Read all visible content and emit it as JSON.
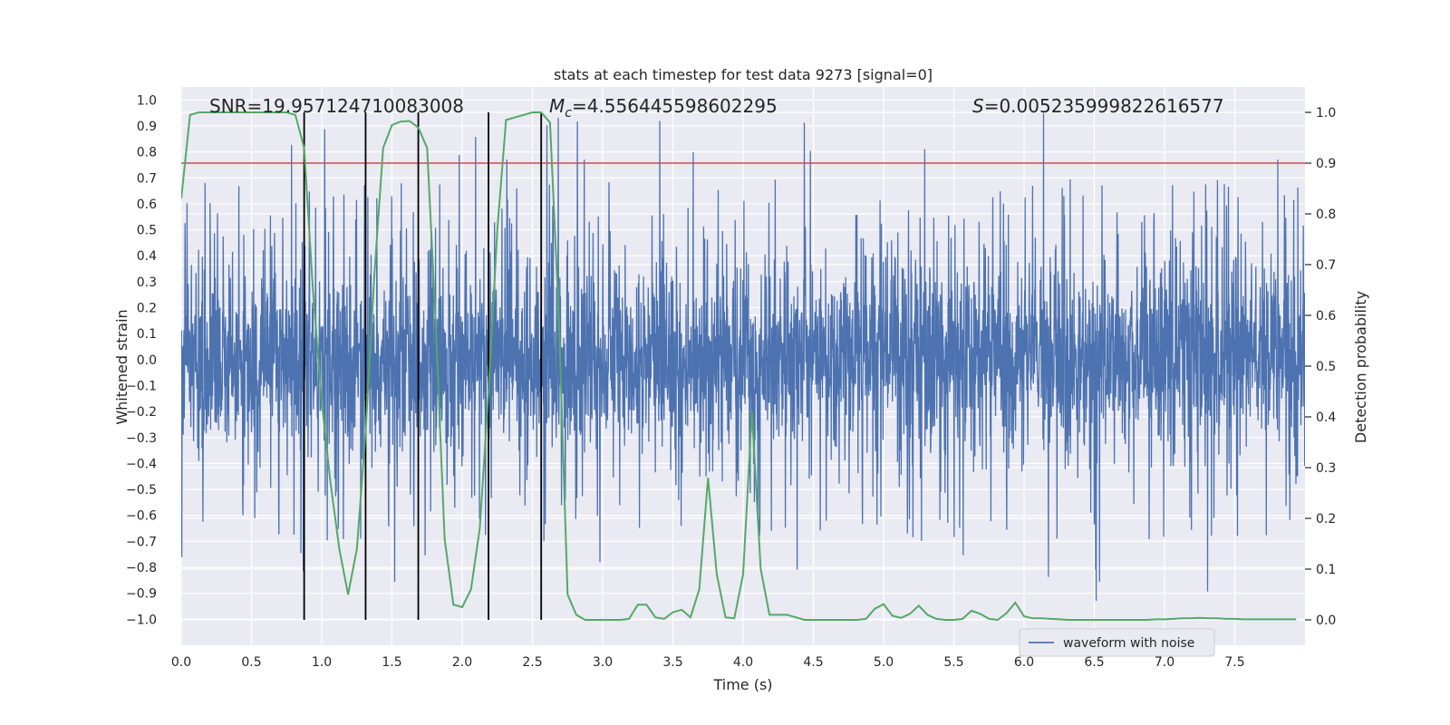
{
  "chart_data": {
    "type": "line",
    "title": "stats at each timestep for test data 9273 [signal=0]",
    "xlabel": "Time (s)",
    "ylabel": "Whitened strain",
    "ylabel_right": "Detection probability",
    "xlim": [
      0.0,
      8.0
    ],
    "ylim": [
      -1.1,
      1.05
    ],
    "ylim_right": [
      -0.05,
      1.05
    ],
    "x_ticks": [
      0.0,
      0.5,
      1.0,
      1.5,
      2.0,
      2.5,
      3.0,
      3.5,
      4.0,
      4.5,
      5.0,
      5.5,
      6.0,
      6.5,
      7.0,
      7.5
    ],
    "x_tick_labels": [
      "0.0",
      "0.5",
      "1.0",
      "1.5",
      "2.0",
      "2.5",
      "3.0",
      "3.5",
      "4.0",
      "4.5",
      "5.0",
      "5.5",
      "6.0",
      "6.5",
      "7.0",
      "7.5"
    ],
    "y_ticks": [
      1.0,
      0.9,
      0.8,
      0.7,
      0.6,
      0.5,
      0.4,
      0.3,
      0.2,
      0.1,
      0.0,
      -0.1,
      -0.2,
      -0.3,
      -0.4,
      -0.5,
      -0.6,
      -0.7,
      -0.8,
      -0.9,
      -1.0
    ],
    "y_tick_labels": [
      "1.0",
      "0.9",
      "0.8",
      "0.7",
      "0.6",
      "0.5",
      "0.4",
      "0.3",
      "0.2",
      "0.1",
      "0.0",
      "−0.1",
      "−0.2",
      "−0.3",
      "−0.4",
      "−0.5",
      "−0.6",
      "−0.7",
      "−0.8",
      "−0.9",
      "−1.0"
    ],
    "y2_ticks": [
      1.0,
      0.9,
      0.8,
      0.7,
      0.6,
      0.5,
      0.4,
      0.3,
      0.2,
      0.1,
      0.0
    ],
    "y2_tick_labels": [
      "1.0",
      "0.9",
      "0.8",
      "0.7",
      "0.6",
      "0.5",
      "0.4",
      "0.3",
      "0.2",
      "0.1",
      "0.0"
    ],
    "annotations": {
      "snr": "SNR=19.957124710083008",
      "mc_prefix": "M",
      "mc_sub": "c",
      "mc_value": "=4.556445598602295",
      "s_prefix": "S",
      "s_value": "=0.005235999822616577"
    },
    "legend": {
      "position": "bottom-right",
      "label": "waveform with noise"
    },
    "threshold": 0.9,
    "vlines": [
      0.875,
      1.3125,
      1.6875,
      2.1875,
      2.5625
    ],
    "waveform": {
      "name": "waveform with noise",
      "color": "#4c72b0",
      "sample_rate": 512,
      "dense_amplitude": 0.36,
      "peak_max": 0.96,
      "peak_min": -0.93
    },
    "probability": {
      "name": "detection probability",
      "color": "#55a868",
      "x": [
        0.0,
        0.0625,
        0.125,
        0.1875,
        0.25,
        0.3125,
        0.375,
        0.4375,
        0.5,
        0.5625,
        0.625,
        0.6875,
        0.75,
        0.8125,
        0.875,
        0.9375,
        1.0,
        1.0625,
        1.125,
        1.1875,
        1.25,
        1.3125,
        1.375,
        1.4375,
        1.5,
        1.5625,
        1.625,
        1.6875,
        1.75,
        1.8125,
        1.875,
        1.9375,
        2.0,
        2.0625,
        2.125,
        2.1875,
        2.25,
        2.3125,
        2.375,
        2.4375,
        2.5,
        2.5625,
        2.625,
        2.6875,
        2.75,
        2.8125,
        2.875,
        2.9375,
        3.0,
        3.0625,
        3.125,
        3.1875,
        3.25,
        3.3125,
        3.375,
        3.4375,
        3.5,
        3.5625,
        3.625,
        3.6875,
        3.75,
        3.8125,
        3.875,
        3.9375,
        4.0,
        4.0625,
        4.125,
        4.1875,
        4.25,
        4.3125,
        4.375,
        4.4375,
        4.5,
        4.5625,
        4.625,
        4.6875,
        4.75,
        4.8125,
        4.875,
        4.9375,
        5.0,
        5.0625,
        5.125,
        5.1875,
        5.25,
        5.3125,
        5.375,
        5.4375,
        5.5,
        5.5625,
        5.625,
        5.6875,
        5.75,
        5.8125,
        5.875,
        5.9375,
        6.0,
        6.0625,
        6.125,
        6.1875,
        6.25,
        6.3125,
        6.375,
        6.4375,
        6.5,
        6.5625,
        6.625,
        6.6875,
        6.75,
        6.8125,
        6.875,
        6.9375,
        7.0,
        7.0625,
        7.125,
        7.1875,
        7.25,
        7.3125,
        7.375,
        7.4375,
        7.5,
        7.5625,
        7.625,
        7.6875,
        7.75,
        7.8125,
        7.875,
        7.9375
      ],
      "values": [
        0.83,
        0.995,
        1.0,
        1.0,
        1.0,
        1.0,
        1.0,
        1.0,
        1.0,
        1.0,
        1.0,
        1.0,
        1.0,
        0.995,
        0.93,
        0.65,
        0.43,
        0.27,
        0.14,
        0.05,
        0.14,
        0.37,
        0.68,
        0.93,
        0.975,
        0.982,
        0.983,
        0.97,
        0.93,
        0.58,
        0.16,
        0.03,
        0.025,
        0.06,
        0.18,
        0.45,
        0.77,
        0.985,
        0.99,
        0.995,
        1.0,
        1.0,
        0.98,
        0.6,
        0.05,
        0.01,
        0.0,
        0.0,
        0.0,
        0.0,
        0.0,
        0.002,
        0.03,
        0.03,
        0.005,
        0.002,
        0.015,
        0.02,
        0.005,
        0.06,
        0.28,
        0.09,
        0.005,
        0.003,
        0.09,
        0.41,
        0.1,
        0.01,
        0.01,
        0.01,
        0.005,
        0.0,
        0.0,
        0.0,
        0.0,
        0.0,
        0.0,
        0.0,
        0.002,
        0.022,
        0.031,
        0.008,
        0.004,
        0.012,
        0.028,
        0.01,
        0.002,
        0.0,
        0.0,
        0.002,
        0.018,
        0.012,
        0.002,
        0.0,
        0.013,
        0.034,
        0.007,
        0.003,
        0.003,
        0.002,
        0.001,
        0.0,
        0.0,
        0.0,
        0.0,
        0.0,
        0.0,
        0.0,
        0.0,
        0.0,
        0.0,
        0.001,
        0.001,
        0.002,
        0.003,
        0.003,
        0.004,
        0.003,
        0.003,
        0.002,
        0.002,
        0.001,
        0.001,
        0.001,
        0.001,
        0.001,
        0.001,
        0.001
      ]
    },
    "threshold_color": "#c44e52",
    "vline_color": "#000000"
  }
}
